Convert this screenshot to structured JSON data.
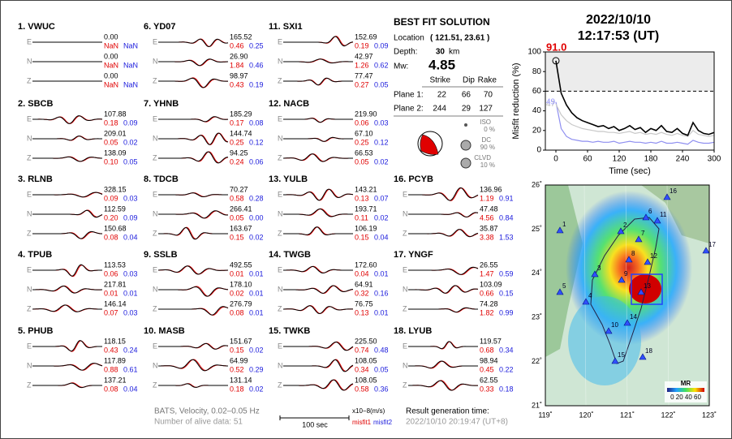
{
  "components": [
    "E",
    "N",
    "Z"
  ],
  "stations": [
    {
      "title": "1.  VWUC",
      "rows": [
        [
          "0.00",
          "NaN",
          "NaN"
        ],
        [
          "0.00",
          "NaN",
          "NaN"
        ],
        [
          "0.00",
          "NaN",
          "NaN"
        ]
      ]
    },
    {
      "title": "2.  SBCB",
      "rows": [
        [
          "107.88",
          "0.18",
          "0.09"
        ],
        [
          "209.01",
          "0.05",
          "0.02"
        ],
        [
          "138.09",
          "0.10",
          "0.05"
        ]
      ]
    },
    {
      "title": "3.  RLNB",
      "rows": [
        [
          "328.15",
          "0.09",
          "0.03"
        ],
        [
          "112.59",
          "0.20",
          "0.09"
        ],
        [
          "150.68",
          "0.08",
          "0.04"
        ]
      ]
    },
    {
      "title": "4.  TPUB",
      "rows": [
        [
          "113.53",
          "0.06",
          "0.03"
        ],
        [
          "217.81",
          "0.01",
          "0.01"
        ],
        [
          "146.14",
          "0.07",
          "0.03"
        ]
      ]
    },
    {
      "title": "5.  PHUB",
      "rows": [
        [
          "118.15",
          "0.43",
          "0.24"
        ],
        [
          "117.89",
          "0.88",
          "0.61"
        ],
        [
          "137.21",
          "0.08",
          "0.04"
        ]
      ]
    },
    {
      "title": "6.  YD07",
      "rows": [
        [
          "165.52",
          "0.46",
          "0.25"
        ],
        [
          "26.90",
          "1.84",
          "0.46"
        ],
        [
          "98.97",
          "0.43",
          "0.19"
        ]
      ]
    },
    {
      "title": "7.  YHNB",
      "rows": [
        [
          "185.29",
          "0.17",
          "0.08"
        ],
        [
          "144.74",
          "0.25",
          "0.12"
        ],
        [
          "94.25",
          "0.24",
          "0.06"
        ]
      ]
    },
    {
      "title": "8.  TDCB",
      "rows": [
        [
          "70.27",
          "0.58",
          "0.28"
        ],
        [
          "266.41",
          "0.05",
          "0.00"
        ],
        [
          "163.67",
          "0.15",
          "0.02"
        ]
      ]
    },
    {
      "title": "9.  SSLB",
      "rows": [
        [
          "492.55",
          "0.01",
          "0.01"
        ],
        [
          "178.10",
          "0.02",
          "0.01"
        ],
        [
          "276.79",
          "0.08",
          "0.01"
        ]
      ]
    },
    {
      "title": "10. MASB",
      "rows": [
        [
          "151.67",
          "0.15",
          "0.02"
        ],
        [
          "64.99",
          "0.52",
          "0.29"
        ],
        [
          "131.14",
          "0.18",
          "0.02"
        ]
      ]
    },
    {
      "title": "11. SXI1",
      "rows": [
        [
          "152.69",
          "0.19",
          "0.09"
        ],
        [
          "42.97",
          "1.26",
          "0.62"
        ],
        [
          "77.47",
          "0.27",
          "0.05"
        ]
      ]
    },
    {
      "title": "12. NACB",
      "rows": [
        [
          "219.90",
          "0.06",
          "0.03"
        ],
        [
          "67.10",
          "0.25",
          "0.12"
        ],
        [
          "66.53",
          "0.05",
          "0.02"
        ]
      ]
    },
    {
      "title": "13. YULB",
      "rows": [
        [
          "143.21",
          "0.13",
          "0.07"
        ],
        [
          "193.71",
          "0.11",
          "0.02"
        ],
        [
          "106.19",
          "0.15",
          "0.04"
        ]
      ]
    },
    {
      "title": "14. TWGB",
      "rows": [
        [
          "172.60",
          "0.04",
          "0.01"
        ],
        [
          "64.91",
          "0.32",
          "0.16"
        ],
        [
          "76.75",
          "0.13",
          "0.01"
        ]
      ]
    },
    {
      "title": "15. TWKB",
      "rows": [
        [
          "225.50",
          "0.74",
          "0.48"
        ],
        [
          "108.05",
          "0.34",
          "0.05"
        ],
        [
          "108.05",
          "0.58",
          "0.36"
        ]
      ]
    },
    {
      "title": "16. PCYB",
      "rows": [
        [
          "136.96",
          "1.19",
          "0.91"
        ],
        [
          "47.48",
          "4.56",
          "0.84"
        ],
        [
          "35.87",
          "3.38",
          "1.53"
        ]
      ]
    },
    {
      "title": "17. YNGF",
      "rows": [
        [
          "26.55",
          "1.47",
          "0.59"
        ],
        [
          "103.09",
          "0.66",
          "0.15"
        ],
        [
          "74.28",
          "1.82",
          "0.99"
        ]
      ]
    },
    {
      "title": "18. LYUB",
      "rows": [
        [
          "119.57",
          "0.68",
          "0.34"
        ],
        [
          "98.94",
          "0.45",
          "0.22"
        ],
        [
          "62.55",
          "0.33",
          "0.18"
        ]
      ]
    }
  ],
  "footer": {
    "filter": "BATS, Velocity, 0.02–0.05 Hz",
    "alive": "Number of alive data: 51",
    "scale": "100 sec",
    "units": "x10−8(m/s)",
    "misfit1": "misfit1",
    "misfit2": "misfit2",
    "result_label": "Result generation time:",
    "result_time": "2022/10/10 20:19:47 (UT+8)"
  },
  "solution": {
    "title": "BEST FIT SOLUTION",
    "location_label": "Location",
    "location": "( 121.51, 23.61 )",
    "depth_label": "Depth:",
    "depth": "30",
    "depth_unit": "km",
    "mw_label": "Mw:",
    "mw": "4.85",
    "headers": [
      "Strike",
      "Dip",
      "Rake"
    ],
    "planes": [
      {
        "label": "Plane 1:",
        "values": [
          "22",
          "66",
          "70"
        ]
      },
      {
        "label": "Plane 2:",
        "values": [
          "244",
          "29",
          "127"
        ]
      }
    ],
    "components": [
      {
        "name": "ISO",
        "value": "0 %"
      },
      {
        "name": "DC",
        "value": "90 %"
      },
      {
        "name": "CLVD",
        "value": "10 %"
      }
    ]
  },
  "event": {
    "date": "2022/10/10",
    "time": "12:17:53  (UT)"
  },
  "chart_data": {
    "type": "line",
    "ylabel": "Misfit reduction (%)",
    "xlabel": "Time (sec)",
    "x": [
      0,
      10,
      20,
      30,
      40,
      50,
      60,
      70,
      80,
      90,
      100,
      110,
      120,
      130,
      140,
      150,
      160,
      170,
      180,
      190,
      200,
      210,
      220,
      230,
      240,
      250,
      260,
      270,
      280,
      290,
      300
    ],
    "series": [
      {
        "color": "#000000",
        "values": [
          91,
          58,
          46,
          38,
          33,
          30,
          28,
          26,
          24,
          25,
          22,
          24,
          20,
          22,
          25,
          21,
          23,
          18,
          22,
          20,
          25,
          19,
          18,
          22,
          17,
          15,
          28,
          20,
          17,
          16,
          18
        ]
      },
      {
        "color": "#c8c8c8",
        "values": [
          47,
          36,
          30,
          26,
          24,
          22,
          21,
          20,
          19,
          19,
          18,
          18,
          17,
          18,
          19,
          17,
          18,
          16,
          17,
          16,
          18,
          16,
          15,
          17,
          15,
          14,
          20,
          16,
          15,
          14,
          15
        ]
      },
      {
        "color": "#8f8ff0",
        "values": [
          49,
          22,
          14,
          11,
          10,
          9,
          9,
          8,
          9,
          8,
          8,
          9,
          7,
          8,
          9,
          8,
          8,
          7,
          8,
          7,
          9,
          7,
          7,
          8,
          7,
          6,
          10,
          8,
          7,
          7,
          8
        ]
      }
    ],
    "annotations": [
      "91.0",
      "47",
      "49"
    ],
    "threshold": 60,
    "xlim": [
      -20,
      300
    ],
    "ylim": [
      0,
      100
    ],
    "xticks": [
      0,
      60,
      120,
      180,
      240,
      300
    ],
    "yticks": [
      0,
      20,
      40,
      60,
      80,
      100
    ]
  },
  "map": {
    "lon_labels": [
      "119˚",
      "120˚",
      "121˚",
      "122˚",
      "123˚"
    ],
    "lat_labels": [
      "26˚",
      "25˚",
      "24˚",
      "23˚",
      "22˚",
      "21˚"
    ],
    "stations": [
      "1",
      "2",
      "3",
      "4",
      "5",
      "6",
      "7",
      "8",
      "9",
      "10",
      "11",
      "12",
      "13",
      "14",
      "15",
      "16",
      "17",
      "18"
    ],
    "colorbar_title": "MR",
    "colorbar_labels": "0 20 40 60"
  }
}
